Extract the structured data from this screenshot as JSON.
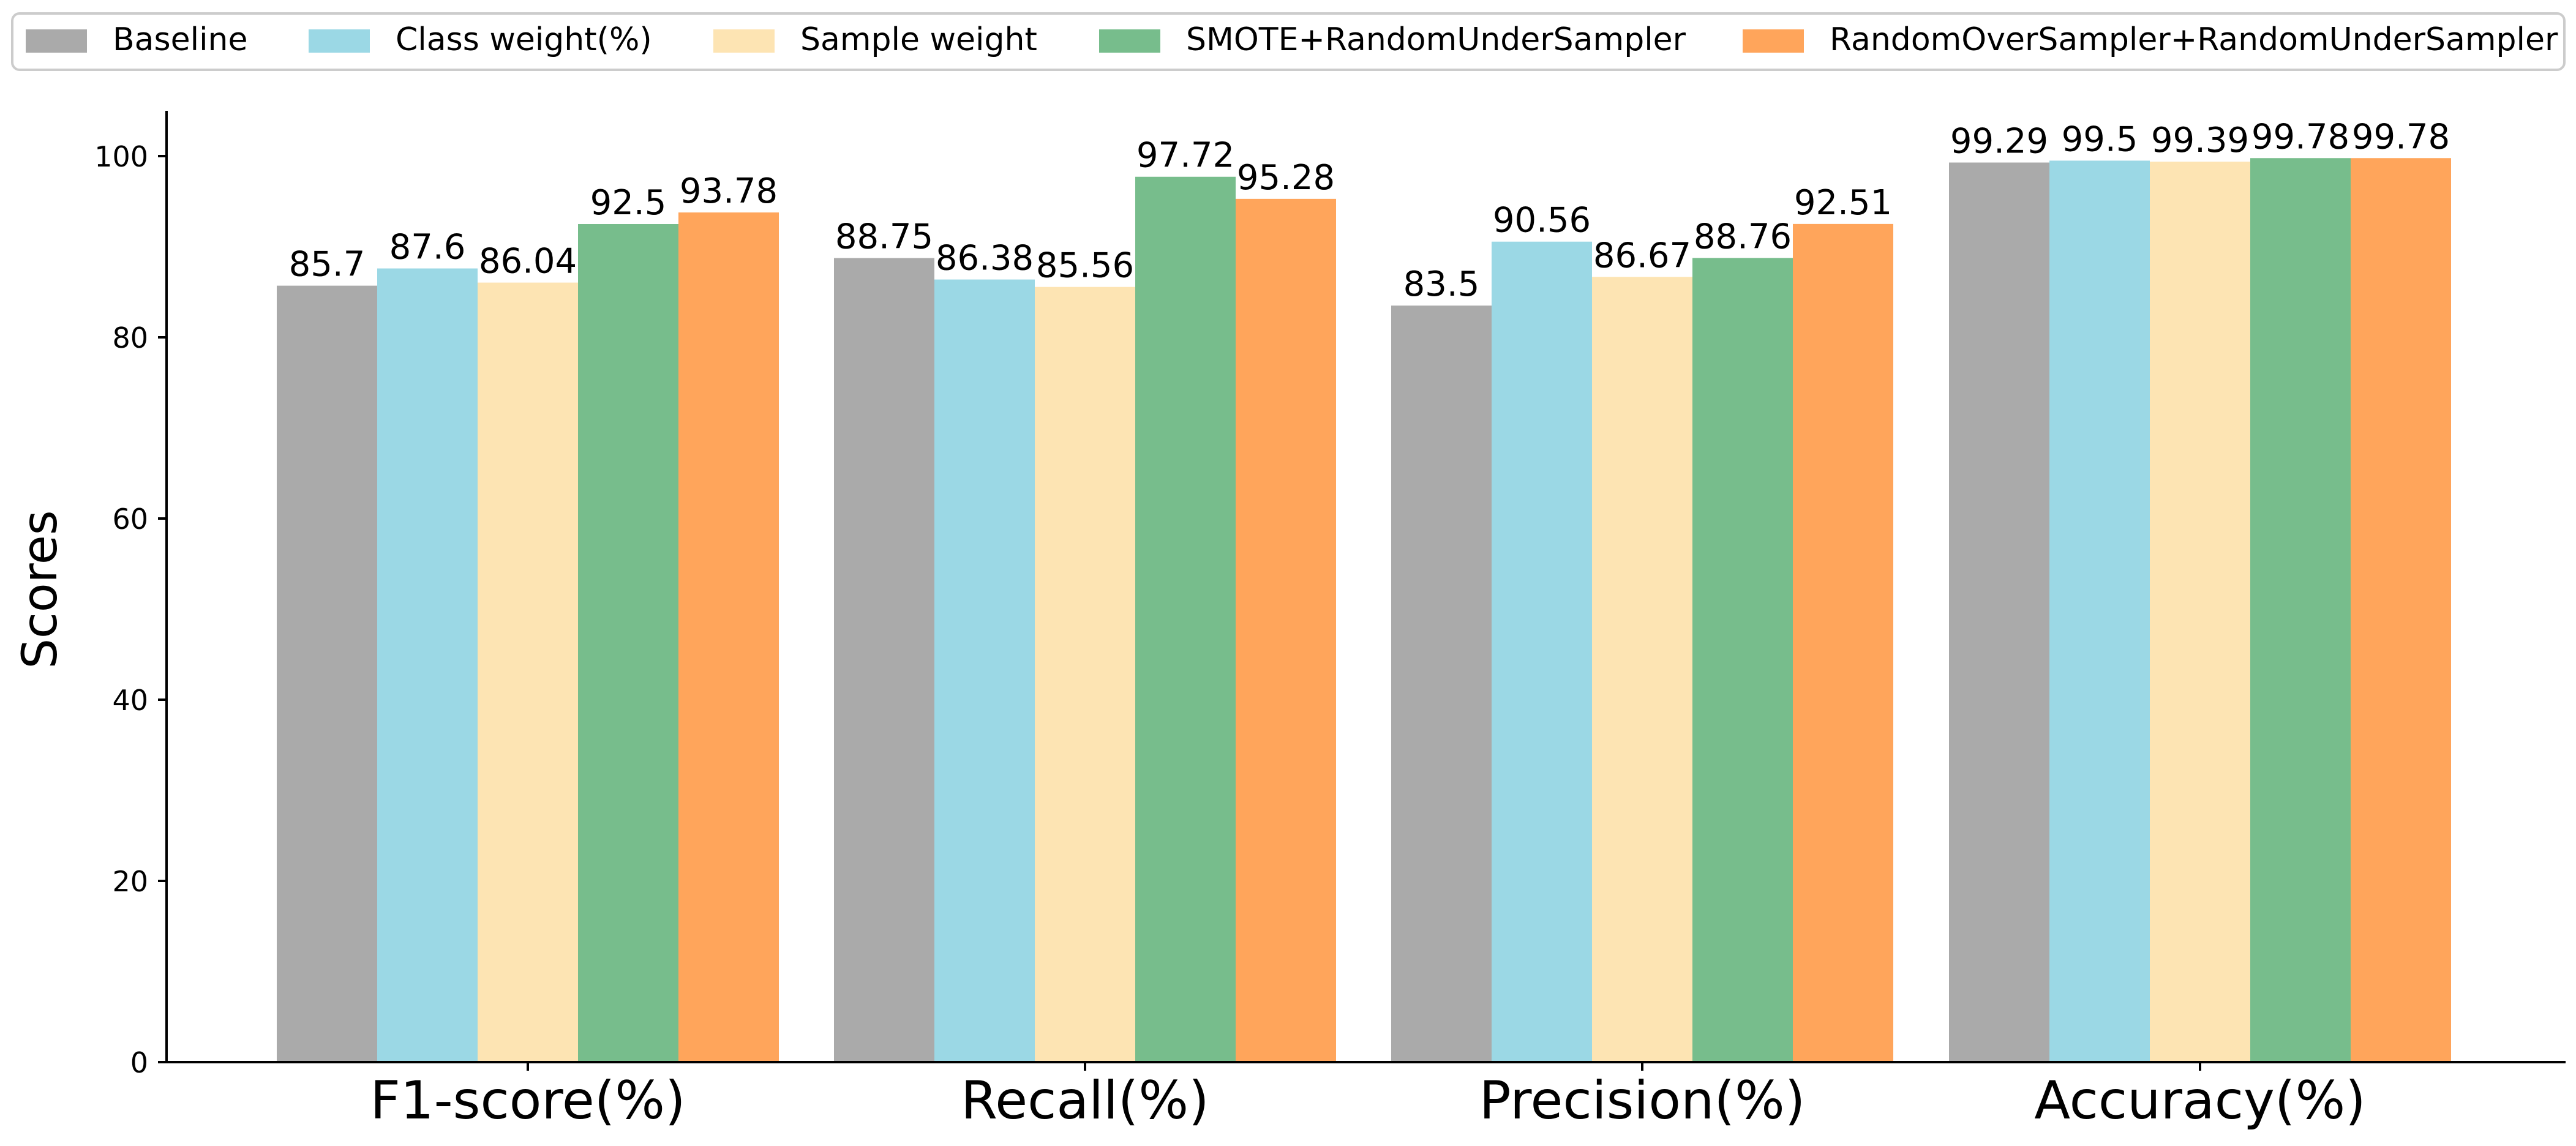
{
  "chart_data": {
    "type": "bar",
    "title": "",
    "xlabel": "",
    "ylabel": "Scores",
    "ylim": [
      0,
      105
    ],
    "yticks": [
      0,
      20,
      40,
      60,
      80,
      100
    ],
    "grid": false,
    "legend_position": "top",
    "categories": [
      "F1-score(%)",
      "Recall(%)",
      "Precision(%)",
      "Accuracy(%)"
    ],
    "series": [
      {
        "name": "Baseline",
        "color": "#aaaaaa",
        "values": [
          85.7,
          88.75,
          83.5,
          99.29
        ]
      },
      {
        "name": "Class weight(%)",
        "color": "#9bd8e5",
        "values": [
          87.6,
          86.38,
          90.56,
          99.5
        ]
      },
      {
        "name": "Sample weight",
        "color": "#fde4b3",
        "values": [
          86.04,
          85.56,
          86.67,
          99.39
        ]
      },
      {
        "name": "SMOTE+RandomUnderSampler",
        "color": "#77bd8c",
        "values": [
          92.5,
          97.72,
          88.76,
          99.78
        ]
      },
      {
        "name": "RandomOverSampler+RandomUnderSampler",
        "color": "#ffa55b",
        "values": [
          93.78,
          95.28,
          92.51,
          99.78
        ]
      }
    ]
  }
}
